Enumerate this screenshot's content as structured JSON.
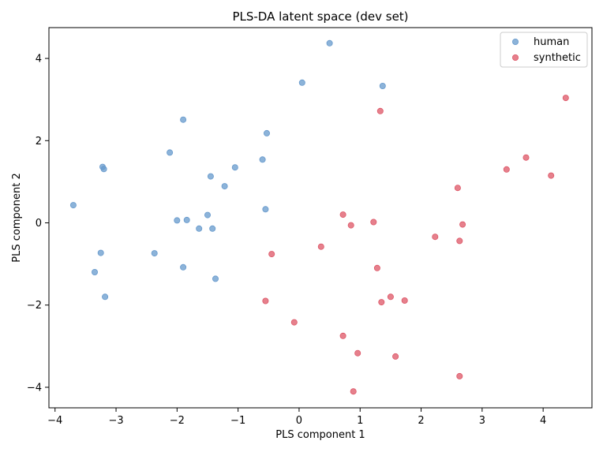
{
  "chart_data": {
    "type": "scatter",
    "title": "PLS-DA latent space (dev set)",
    "xlabel": "PLS component 1",
    "ylabel": "PLS component 2",
    "xlim": [
      -4.1,
      4.8
    ],
    "ylim": [
      -4.5,
      4.75
    ],
    "xticks": [
      -4,
      -3,
      -2,
      -1,
      0,
      1,
      2,
      3,
      4
    ],
    "yticks": [
      -4,
      -2,
      0,
      2,
      4
    ],
    "xtick_labels": [
      "−4",
      "−3",
      "−2",
      "−1",
      "0",
      "1",
      "2",
      "3",
      "4"
    ],
    "ytick_labels": [
      "−4",
      "−2",
      "0",
      "2",
      "4"
    ],
    "grid": false,
    "legend_position": "top-right",
    "series": [
      {
        "name": "human",
        "color": "#6699cc",
        "points": [
          [
            0.5,
            4.37
          ],
          [
            0.05,
            3.41
          ],
          [
            1.37,
            3.33
          ],
          [
            -1.9,
            2.51
          ],
          [
            -0.53,
            2.18
          ],
          [
            -2.12,
            1.71
          ],
          [
            -0.6,
            1.54
          ],
          [
            -3.22,
            1.36
          ],
          [
            -3.2,
            1.31
          ],
          [
            -1.05,
            1.35
          ],
          [
            -1.45,
            1.13
          ],
          [
            -1.22,
            0.89
          ],
          [
            -3.7,
            0.43
          ],
          [
            -0.55,
            0.33
          ],
          [
            -1.5,
            0.19
          ],
          [
            -2.0,
            0.06
          ],
          [
            -1.84,
            0.07
          ],
          [
            -1.64,
            -0.14
          ],
          [
            -1.42,
            -0.14
          ],
          [
            -3.25,
            -0.73
          ],
          [
            -2.37,
            -0.74
          ],
          [
            -1.9,
            -1.08
          ],
          [
            -3.35,
            -1.2
          ],
          [
            -1.37,
            -1.36
          ],
          [
            -3.18,
            -1.8
          ]
        ]
      },
      {
        "name": "synthetic",
        "color": "#dd5566",
        "points": [
          [
            4.37,
            3.04
          ],
          [
            1.33,
            2.72
          ],
          [
            3.72,
            1.59
          ],
          [
            3.4,
            1.3
          ],
          [
            4.13,
            1.15
          ],
          [
            2.6,
            0.85
          ],
          [
            0.72,
            0.2
          ],
          [
            1.22,
            0.02
          ],
          [
            0.85,
            -0.06
          ],
          [
            2.68,
            -0.04
          ],
          [
            2.23,
            -0.34
          ],
          [
            2.63,
            -0.44
          ],
          [
            0.36,
            -0.58
          ],
          [
            -0.45,
            -0.76
          ],
          [
            1.28,
            -1.1
          ],
          [
            1.5,
            -1.8
          ],
          [
            1.35,
            -1.93
          ],
          [
            1.73,
            -1.89
          ],
          [
            -0.55,
            -1.9
          ],
          [
            -0.08,
            -2.42
          ],
          [
            0.72,
            -2.75
          ],
          [
            0.96,
            -3.17
          ],
          [
            1.58,
            -3.25
          ],
          [
            2.63,
            -3.73
          ],
          [
            0.89,
            -4.1
          ]
        ]
      }
    ]
  }
}
